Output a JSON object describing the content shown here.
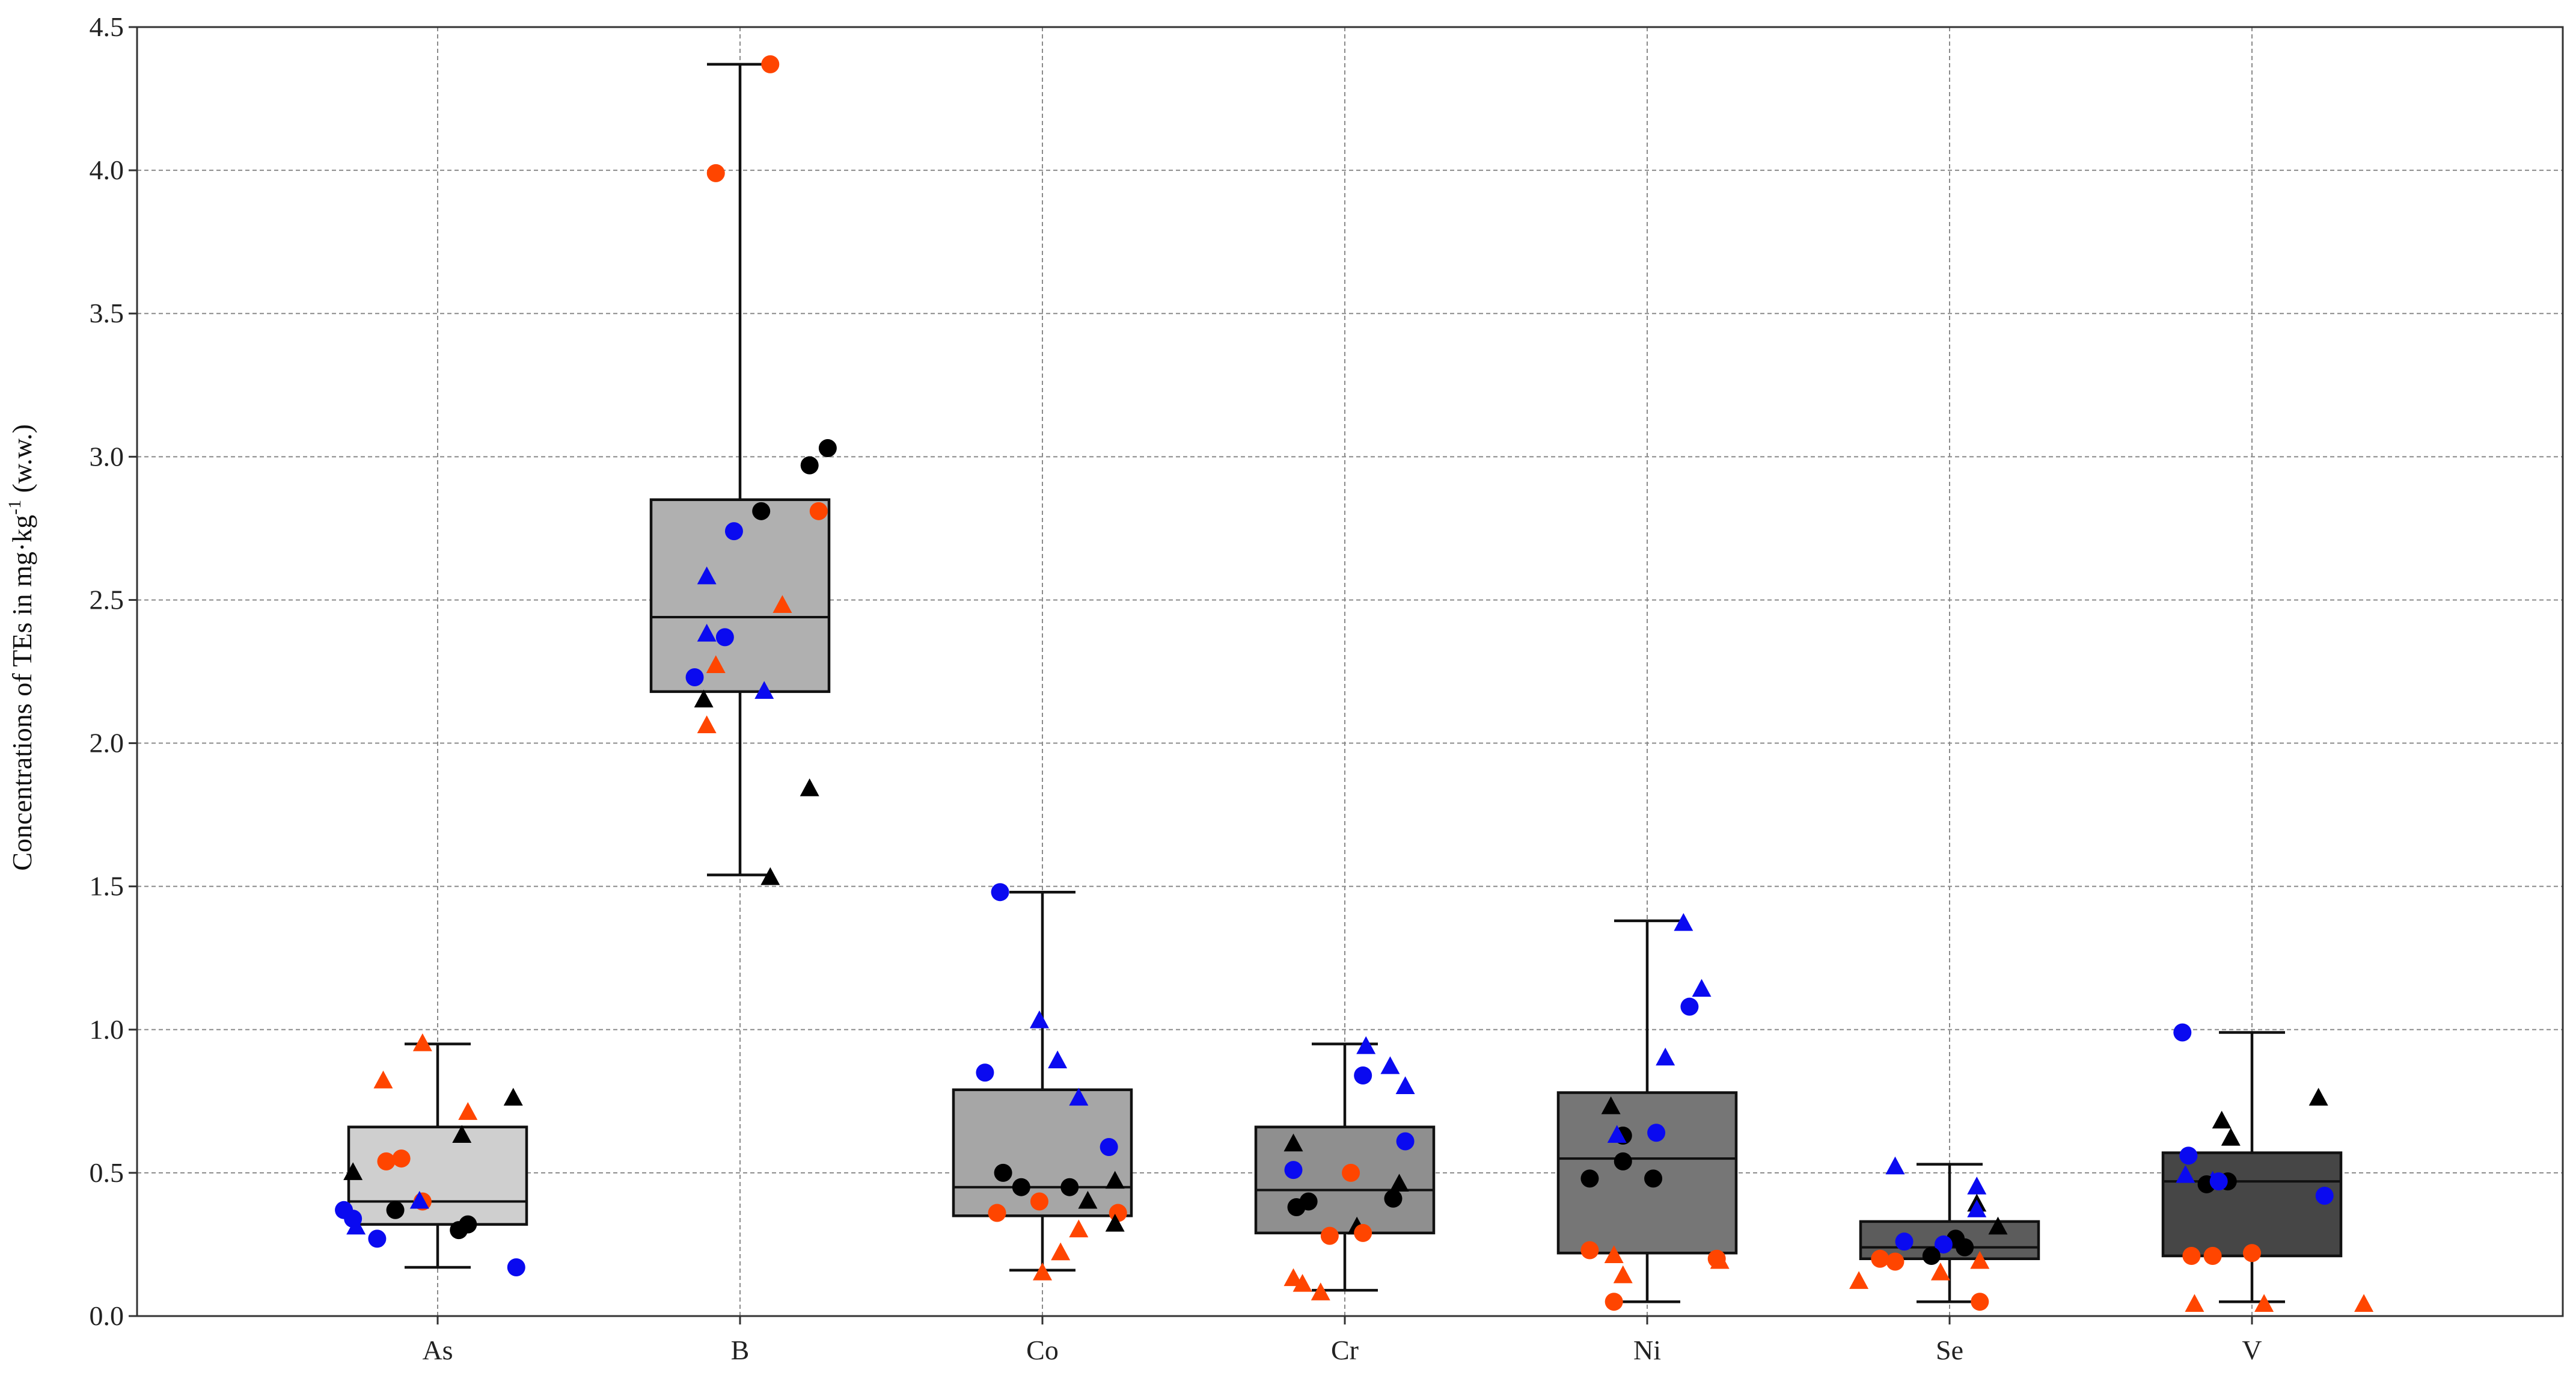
{
  "chart_data": {
    "type": "box",
    "title": "",
    "xlabel": "",
    "ylabel": {
      "main": "Concentrations of TEs in mg·kg",
      "sup": "-1",
      "suffix": " (w.w.)"
    },
    "ylim": [
      0,
      4.5
    ],
    "yticks": [
      "0.0",
      "0.5",
      "1.0",
      "1.5",
      "2.0",
      "2.5",
      "3.0",
      "3.5",
      "4.0",
      "4.5"
    ],
    "grid": true,
    "marker_colors": {
      "black": "#000000",
      "blue": "#0a0af0",
      "red": "#ff4500"
    },
    "categories": [
      "As",
      "B",
      "Co",
      "Cr",
      "Ni",
      "Se",
      "V"
    ],
    "boxes": [
      {
        "label": "As",
        "fill": "#cfcfcf",
        "whisker_low": 0.17,
        "q1": 0.32,
        "median": 0.4,
        "q3": 0.66,
        "whisker_high": 0.95,
        "points": [
          {
            "y": 0.37,
            "dx": -0.31,
            "c": "blue",
            "m": "circle"
          },
          {
            "y": 0.34,
            "dx": -0.28,
            "c": "blue",
            "m": "circle"
          },
          {
            "y": 0.31,
            "dx": -0.27,
            "c": "blue",
            "m": "triangle"
          },
          {
            "y": 0.27,
            "dx": -0.2,
            "c": "blue",
            "m": "circle"
          },
          {
            "y": 0.5,
            "dx": -0.28,
            "c": "black",
            "m": "triangle"
          },
          {
            "y": 0.37,
            "dx": -0.14,
            "c": "black",
            "m": "circle"
          },
          {
            "y": 0.82,
            "dx": -0.18,
            "c": "red",
            "m": "triangle"
          },
          {
            "y": 0.54,
            "dx": -0.17,
            "c": "red",
            "m": "circle"
          },
          {
            "y": 0.55,
            "dx": -0.12,
            "c": "red",
            "m": "circle"
          },
          {
            "y": 0.4,
            "dx": -0.05,
            "c": "red",
            "m": "circle"
          },
          {
            "y": 0.4,
            "dx": -0.06,
            "c": "blue",
            "m": "triangle"
          },
          {
            "y": 0.95,
            "dx": -0.05,
            "c": "red",
            "m": "triangle"
          },
          {
            "y": 0.3,
            "dx": 0.07,
            "c": "black",
            "m": "circle"
          },
          {
            "y": 0.32,
            "dx": 0.1,
            "c": "black",
            "m": "circle"
          },
          {
            "y": 0.63,
            "dx": 0.08,
            "c": "black",
            "m": "triangle"
          },
          {
            "y": 0.71,
            "dx": 0.1,
            "c": "red",
            "m": "triangle"
          },
          {
            "y": 0.76,
            "dx": 0.25,
            "c": "black",
            "m": "triangle"
          },
          {
            "y": 0.17,
            "dx": 0.26,
            "c": "blue",
            "m": "circle"
          }
        ]
      },
      {
        "label": "B",
        "fill": "#b0b0b0",
        "whisker_low": 1.54,
        "q1": 2.18,
        "median": 2.44,
        "q3": 2.85,
        "whisker_high": 4.37,
        "points": [
          {
            "y": 4.37,
            "dx": 0.1,
            "c": "red",
            "m": "circle"
          },
          {
            "y": 3.99,
            "dx": -0.08,
            "c": "red",
            "m": "circle"
          },
          {
            "y": 3.03,
            "dx": 0.29,
            "c": "black",
            "m": "circle"
          },
          {
            "y": 2.97,
            "dx": 0.23,
            "c": "black",
            "m": "circle"
          },
          {
            "y": 2.81,
            "dx": 0.07,
            "c": "black",
            "m": "circle"
          },
          {
            "y": 2.81,
            "dx": 0.26,
            "c": "red",
            "m": "circle"
          },
          {
            "y": 2.74,
            "dx": -0.02,
            "c": "blue",
            "m": "circle"
          },
          {
            "y": 2.58,
            "dx": -0.11,
            "c": "blue",
            "m": "triangle"
          },
          {
            "y": 2.48,
            "dx": 0.14,
            "c": "red",
            "m": "triangle"
          },
          {
            "y": 2.38,
            "dx": -0.11,
            "c": "blue",
            "m": "triangle"
          },
          {
            "y": 2.37,
            "dx": -0.05,
            "c": "blue",
            "m": "circle"
          },
          {
            "y": 2.27,
            "dx": -0.08,
            "c": "red",
            "m": "triangle"
          },
          {
            "y": 2.23,
            "dx": -0.15,
            "c": "blue",
            "m": "circle"
          },
          {
            "y": 2.18,
            "dx": 0.08,
            "c": "blue",
            "m": "triangle"
          },
          {
            "y": 2.15,
            "dx": -0.12,
            "c": "black",
            "m": "triangle"
          },
          {
            "y": 2.06,
            "dx": -0.11,
            "c": "red",
            "m": "triangle"
          },
          {
            "y": 1.84,
            "dx": 0.23,
            "c": "black",
            "m": "triangle"
          },
          {
            "y": 1.53,
            "dx": 0.1,
            "c": "black",
            "m": "triangle"
          }
        ]
      },
      {
        "label": "Co",
        "fill": "#a6a6a6",
        "whisker_low": 0.16,
        "q1": 0.35,
        "median": 0.45,
        "q3": 0.79,
        "whisker_high": 1.48,
        "points": [
          {
            "y": 1.48,
            "dx": -0.14,
            "c": "blue",
            "m": "circle"
          },
          {
            "y": 1.03,
            "dx": -0.01,
            "c": "blue",
            "m": "triangle"
          },
          {
            "y": 0.89,
            "dx": 0.05,
            "c": "blue",
            "m": "triangle"
          },
          {
            "y": 0.85,
            "dx": -0.19,
            "c": "blue",
            "m": "circle"
          },
          {
            "y": 0.76,
            "dx": 0.12,
            "c": "blue",
            "m": "triangle"
          },
          {
            "y": 0.59,
            "dx": 0.22,
            "c": "blue",
            "m": "circle"
          },
          {
            "y": 0.5,
            "dx": -0.13,
            "c": "black",
            "m": "circle"
          },
          {
            "y": 0.45,
            "dx": -0.07,
            "c": "black",
            "m": "circle"
          },
          {
            "y": 0.45,
            "dx": 0.09,
            "c": "black",
            "m": "circle"
          },
          {
            "y": 0.47,
            "dx": 0.24,
            "c": "black",
            "m": "triangle"
          },
          {
            "y": 0.4,
            "dx": 0.15,
            "c": "black",
            "m": "triangle"
          },
          {
            "y": 0.4,
            "dx": -0.01,
            "c": "red",
            "m": "circle"
          },
          {
            "y": 0.36,
            "dx": -0.15,
            "c": "red",
            "m": "circle"
          },
          {
            "y": 0.36,
            "dx": 0.25,
            "c": "red",
            "m": "circle"
          },
          {
            "y": 0.32,
            "dx": 0.24,
            "c": "black",
            "m": "triangle"
          },
          {
            "y": 0.3,
            "dx": 0.12,
            "c": "red",
            "m": "triangle"
          },
          {
            "y": 0.22,
            "dx": 0.06,
            "c": "red",
            "m": "triangle"
          },
          {
            "y": 0.15,
            "dx": -0.0,
            "c": "red",
            "m": "triangle"
          }
        ]
      },
      {
        "label": "Cr",
        "fill": "#8f8f8f",
        "whisker_low": 0.09,
        "q1": 0.29,
        "median": 0.44,
        "q3": 0.66,
        "whisker_high": 0.95,
        "points": [
          {
            "y": 0.94,
            "dx": 0.07,
            "c": "blue",
            "m": "triangle"
          },
          {
            "y": 0.87,
            "dx": 0.15,
            "c": "blue",
            "m": "triangle"
          },
          {
            "y": 0.84,
            "dx": 0.06,
            "c": "blue",
            "m": "circle"
          },
          {
            "y": 0.8,
            "dx": 0.2,
            "c": "blue",
            "m": "triangle"
          },
          {
            "y": 0.61,
            "dx": 0.2,
            "c": "blue",
            "m": "circle"
          },
          {
            "y": 0.6,
            "dx": -0.17,
            "c": "black",
            "m": "triangle"
          },
          {
            "y": 0.51,
            "dx": -0.17,
            "c": "blue",
            "m": "circle"
          },
          {
            "y": 0.5,
            "dx": 0.02,
            "c": "red",
            "m": "circle"
          },
          {
            "y": 0.46,
            "dx": 0.18,
            "c": "black",
            "m": "triangle"
          },
          {
            "y": 0.41,
            "dx": 0.16,
            "c": "black",
            "m": "circle"
          },
          {
            "y": 0.4,
            "dx": -0.12,
            "c": "black",
            "m": "circle"
          },
          {
            "y": 0.38,
            "dx": -0.16,
            "c": "black",
            "m": "circle"
          },
          {
            "y": 0.31,
            "dx": 0.04,
            "c": "black",
            "m": "triangle"
          },
          {
            "y": 0.29,
            "dx": 0.06,
            "c": "red",
            "m": "circle"
          },
          {
            "y": 0.28,
            "dx": -0.05,
            "c": "red",
            "m": "circle"
          },
          {
            "y": 0.13,
            "dx": -0.17,
            "c": "red",
            "m": "triangle"
          },
          {
            "y": 0.11,
            "dx": -0.14,
            "c": "red",
            "m": "triangle"
          },
          {
            "y": 0.08,
            "dx": -0.08,
            "c": "red",
            "m": "triangle"
          }
        ]
      },
      {
        "label": "Ni",
        "fill": "#767676",
        "whisker_low": 0.05,
        "q1": 0.22,
        "median": 0.55,
        "q3": 0.78,
        "whisker_high": 1.38,
        "points": [
          {
            "y": 1.37,
            "dx": 0.12,
            "c": "blue",
            "m": "triangle"
          },
          {
            "y": 1.14,
            "dx": 0.18,
            "c": "blue",
            "m": "triangle"
          },
          {
            "y": 1.08,
            "dx": 0.14,
            "c": "blue",
            "m": "circle"
          },
          {
            "y": 0.9,
            "dx": 0.06,
            "c": "blue",
            "m": "triangle"
          },
          {
            "y": 0.73,
            "dx": -0.12,
            "c": "black",
            "m": "triangle"
          },
          {
            "y": 0.64,
            "dx": 0.03,
            "c": "blue",
            "m": "circle"
          },
          {
            "y": 0.63,
            "dx": -0.08,
            "c": "black",
            "m": "circle"
          },
          {
            "y": 0.63,
            "dx": -0.1,
            "c": "blue",
            "m": "triangle"
          },
          {
            "y": 0.54,
            "dx": -0.08,
            "c": "black",
            "m": "circle"
          },
          {
            "y": 0.48,
            "dx": -0.19,
            "c": "black",
            "m": "circle"
          },
          {
            "y": 0.48,
            "dx": 0.02,
            "c": "black",
            "m": "circle"
          },
          {
            "y": 0.23,
            "dx": -0.19,
            "c": "red",
            "m": "circle"
          },
          {
            "y": 0.21,
            "dx": -0.11,
            "c": "red",
            "m": "triangle"
          },
          {
            "y": 0.2,
            "dx": 0.23,
            "c": "red",
            "m": "circle"
          },
          {
            "y": 0.19,
            "dx": 0.24,
            "c": "red",
            "m": "triangle"
          },
          {
            "y": 0.14,
            "dx": -0.08,
            "c": "red",
            "m": "triangle"
          },
          {
            "y": 0.05,
            "dx": -0.11,
            "c": "red",
            "m": "circle"
          }
        ]
      },
      {
        "label": "Se",
        "fill": "#5c5c5c",
        "whisker_low": 0.05,
        "q1": 0.2,
        "median": 0.24,
        "q3": 0.33,
        "whisker_high": 0.53,
        "points": [
          {
            "y": 0.52,
            "dx": -0.18,
            "c": "blue",
            "m": "triangle"
          },
          {
            "y": 0.45,
            "dx": 0.09,
            "c": "blue",
            "m": "triangle"
          },
          {
            "y": 0.39,
            "dx": 0.09,
            "c": "black",
            "m": "triangle"
          },
          {
            "y": 0.37,
            "dx": 0.09,
            "c": "blue",
            "m": "triangle"
          },
          {
            "y": 0.31,
            "dx": 0.16,
            "c": "black",
            "m": "triangle"
          },
          {
            "y": 0.27,
            "dx": 0.02,
            "c": "black",
            "m": "circle"
          },
          {
            "y": 0.26,
            "dx": -0.15,
            "c": "blue",
            "m": "circle"
          },
          {
            "y": 0.24,
            "dx": 0.05,
            "c": "black",
            "m": "circle"
          },
          {
            "y": 0.25,
            "dx": -0.02,
            "c": "blue",
            "m": "circle"
          },
          {
            "y": 0.21,
            "dx": -0.06,
            "c": "black",
            "m": "circle"
          },
          {
            "y": 0.2,
            "dx": -0.23,
            "c": "red",
            "m": "circle"
          },
          {
            "y": 0.19,
            "dx": -0.18,
            "c": "red",
            "m": "circle"
          },
          {
            "y": 0.19,
            "dx": 0.1,
            "c": "red",
            "m": "triangle"
          },
          {
            "y": 0.15,
            "dx": -0.03,
            "c": "red",
            "m": "triangle"
          },
          {
            "y": 0.12,
            "dx": -0.3,
            "c": "red",
            "m": "triangle"
          },
          {
            "y": 0.05,
            "dx": 0.1,
            "c": "red",
            "m": "circle"
          }
        ]
      },
      {
        "label": "V",
        "fill": "#464646",
        "whisker_low": 0.05,
        "q1": 0.21,
        "median": 0.47,
        "q3": 0.57,
        "whisker_high": 0.99,
        "points": [
          {
            "y": 0.99,
            "dx": -0.23,
            "c": "blue",
            "m": "circle"
          },
          {
            "y": 0.76,
            "dx": 0.22,
            "c": "black",
            "m": "triangle"
          },
          {
            "y": 0.68,
            "dx": -0.1,
            "c": "black",
            "m": "triangle"
          },
          {
            "y": 0.62,
            "dx": -0.07,
            "c": "black",
            "m": "triangle"
          },
          {
            "y": 0.56,
            "dx": -0.21,
            "c": "blue",
            "m": "circle"
          },
          {
            "y": 0.49,
            "dx": -0.22,
            "c": "blue",
            "m": "triangle"
          },
          {
            "y": 0.47,
            "dx": -0.13,
            "c": "blue",
            "m": "triangle"
          },
          {
            "y": 0.46,
            "dx": -0.15,
            "c": "black",
            "m": "circle"
          },
          {
            "y": 0.47,
            "dx": -0.08,
            "c": "black",
            "m": "circle"
          },
          {
            "y": 0.47,
            "dx": -0.11,
            "c": "blue",
            "m": "circle"
          },
          {
            "y": 0.42,
            "dx": 0.24,
            "c": "blue",
            "m": "circle"
          },
          {
            "y": 0.21,
            "dx": -0.2,
            "c": "red",
            "m": "circle"
          },
          {
            "y": 0.21,
            "dx": -0.13,
            "c": "red",
            "m": "circle"
          },
          {
            "y": 0.22,
            "dx": -0.0,
            "c": "red",
            "m": "circle"
          },
          {
            "y": 0.04,
            "dx": -0.19,
            "c": "red",
            "m": "triangle"
          },
          {
            "y": 0.04,
            "dx": 0.04,
            "c": "red",
            "m": "triangle"
          },
          {
            "y": 0.04,
            "dx": 0.37,
            "c": "red",
            "m": "triangle"
          }
        ]
      }
    ]
  }
}
